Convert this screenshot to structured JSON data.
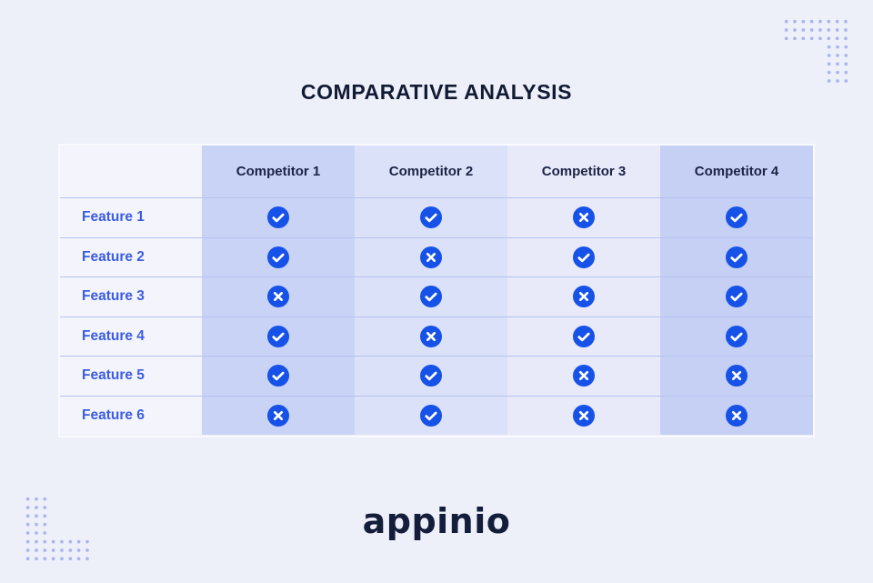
{
  "title": "COMPARATIVE ANALYSIS",
  "logo": {
    "text": "appinio"
  },
  "colors": {
    "page_background": "#edeff9",
    "icon_blue": "#1651e8",
    "glyph_white": "#ffffff",
    "feature_text": "#3c5de2",
    "header_text": "#1b2444",
    "column_tints": [
      "#c9d3f6",
      "#dbe1f8",
      "#e8eafa",
      "#c6d0f4"
    ],
    "dot": "#a9b4ef"
  },
  "icons": {
    "check": "check-circle-icon",
    "cross": "cross-circle-icon"
  },
  "table": {
    "columns": [
      "Competitor 1",
      "Competitor 2",
      "Competitor 3",
      "Competitor 4"
    ],
    "rows": [
      {
        "label": "Feature 1",
        "values": [
          "check",
          "check",
          "cross",
          "check"
        ]
      },
      {
        "label": "Feature 2",
        "values": [
          "check",
          "cross",
          "check",
          "check"
        ]
      },
      {
        "label": "Feature 3",
        "values": [
          "cross",
          "check",
          "cross",
          "check"
        ]
      },
      {
        "label": "Feature 4",
        "values": [
          "check",
          "cross",
          "check",
          "check"
        ]
      },
      {
        "label": "Feature 5",
        "values": [
          "check",
          "check",
          "cross",
          "cross"
        ]
      },
      {
        "label": "Feature 6",
        "values": [
          "cross",
          "check",
          "cross",
          "cross"
        ]
      }
    ]
  }
}
